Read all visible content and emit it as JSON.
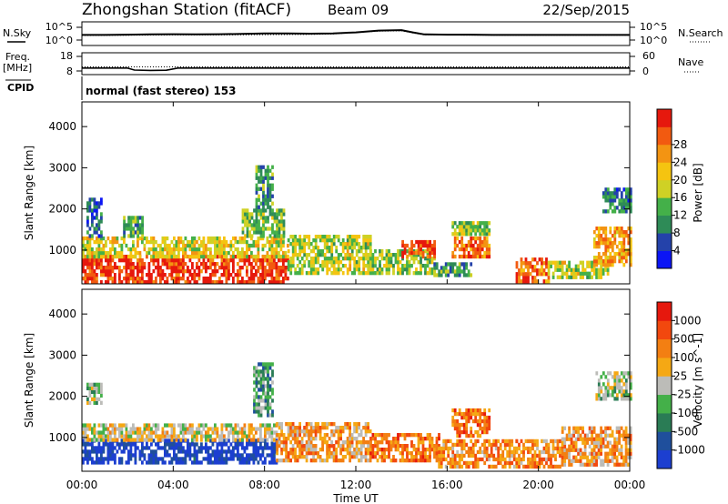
{
  "header": {
    "title": "Zhongshan Station (fitACF)",
    "beam": "Beam 09",
    "date": "22/Sep/2015"
  },
  "labels": {
    "nsky": "N.Sky",
    "nsearch": "N.Search",
    "freq": "Freq.",
    "mhz": "[MHz]",
    "nave": "Nave",
    "cpid": "CPID",
    "cpid_value": "normal (fast stereo) 153",
    "tick_1e5": "10^5",
    "tick_1e0": "10^0",
    "tick_18": "18",
    "tick_8": "8",
    "tick_60": "60",
    "tick_0": "0"
  },
  "chart_data": [
    {
      "type": "line",
      "panel": "noise",
      "series": [
        {
          "name": "N.Sky",
          "x": [
            0,
            1,
            2,
            3,
            4,
            5,
            6,
            7,
            8,
            9,
            10,
            11,
            12,
            13,
            14,
            14.5,
            15,
            16,
            17,
            18,
            19,
            20,
            21,
            22,
            23,
            24
          ],
          "values": [
            2.0,
            2.0,
            2.1,
            2.2,
            2.3,
            2.2,
            2.3,
            2.4,
            2.6,
            2.6,
            2.5,
            2.6,
            3.0,
            3.7,
            3.9,
            3.0,
            2.2,
            2.1,
            2.1,
            2.0,
            2.0,
            2.0,
            2.0,
            2.0,
            2.0,
            2.0
          ]
        },
        {
          "name": "N.Search",
          "x": [
            0,
            2,
            4,
            6,
            8,
            10,
            11,
            12,
            13,
            14,
            14.5,
            15,
            18,
            21,
            24
          ],
          "values": [
            1.8,
            1.9,
            2.0,
            2.0,
            2.1,
            2.2,
            2.4,
            3.0,
            3.5,
            3.6,
            2.8,
            2.0,
            1.9,
            1.9,
            1.9
          ]
        }
      ]
    },
    {
      "type": "line",
      "panel": "frequency",
      "series": [
        {
          "name": "Freq.",
          "x": [
            0,
            2,
            2.3,
            3,
            3.7,
            4.2,
            6,
            12,
            18,
            24
          ],
          "values": [
            10.0,
            10.0,
            8.6,
            8.4,
            8.5,
            10.0,
            10.0,
            10.0,
            10.0,
            10.0
          ]
        },
        {
          "name": "Nave",
          "x": [
            0,
            6,
            12,
            18,
            24
          ],
          "values": [
            17,
            17,
            17,
            17,
            17
          ]
        }
      ]
    },
    {
      "type": "heatmap",
      "panel": "power",
      "ylabel": "Slant Range [km]",
      "ylim": [
        180,
        4600
      ],
      "xlim": [
        0,
        24
      ],
      "colorbar_label": "Power [dB]",
      "colorbar_ticks": [
        "4",
        "8",
        "12",
        "16",
        "20",
        "24",
        "28"
      ],
      "colorbar_colors": [
        "#0b15f5",
        "#2442aa",
        "#2e8b57",
        "#44b049",
        "#cfd125",
        "#f5c410",
        "#f39412",
        "#f25a10",
        "#e6180d"
      ],
      "yticks": [
        "1000",
        "2000",
        "3000",
        "4000"
      ],
      "regions": [
        {
          "t0": 0.0,
          "t1": 9.0,
          "r0": 180,
          "r1": 800,
          "level": 0.9
        },
        {
          "t0": 0.0,
          "t1": 9.0,
          "r0": 800,
          "r1": 1250,
          "level": 0.55
        },
        {
          "t0": 0.2,
          "t1": 0.8,
          "r0": 1300,
          "r1": 2200,
          "level": 0.2
        },
        {
          "t0": 1.8,
          "t1": 2.6,
          "r0": 1300,
          "r1": 1800,
          "level": 0.35
        },
        {
          "t0": 7.0,
          "t1": 8.8,
          "r0": 1300,
          "r1": 2000,
          "level": 0.4
        },
        {
          "t0": 7.6,
          "t1": 8.3,
          "r0": 2000,
          "r1": 3000,
          "level": 0.3
        },
        {
          "t0": 9.0,
          "t1": 12.6,
          "r0": 400,
          "r1": 1300,
          "level": 0.5
        },
        {
          "t0": 12.6,
          "t1": 15.4,
          "r0": 400,
          "r1": 1000,
          "level": 0.45
        },
        {
          "t0": 14.0,
          "t1": 15.4,
          "r0": 800,
          "r1": 1200,
          "level": 0.85
        },
        {
          "t0": 15.4,
          "t1": 17.0,
          "r0": 350,
          "r1": 700,
          "level": 0.35
        },
        {
          "t0": 16.2,
          "t1": 17.8,
          "r0": 800,
          "r1": 1300,
          "level": 0.8
        },
        {
          "t0": 16.2,
          "t1": 17.8,
          "r0": 1350,
          "r1": 1700,
          "level": 0.45
        },
        {
          "t0": 19.0,
          "t1": 20.4,
          "r0": 200,
          "r1": 750,
          "level": 0.8
        },
        {
          "t0": 20.4,
          "t1": 23.0,
          "r0": 300,
          "r1": 700,
          "level": 0.5
        },
        {
          "t0": 22.4,
          "t1": 24.0,
          "r0": 600,
          "r1": 1500,
          "level": 0.7
        },
        {
          "t0": 22.8,
          "t1": 24.0,
          "r0": 1900,
          "r1": 2500,
          "level": 0.25
        }
      ]
    },
    {
      "type": "heatmap",
      "panel": "velocity",
      "ylabel": "Slant Range [km]",
      "xlabel": "Time UT",
      "ylim": [
        180,
        4600
      ],
      "xlim": [
        0,
        24
      ],
      "colorbar_label": "Velocity [m s^-1]",
      "colorbar_ticks": [
        "1000",
        "500",
        "100",
        "25",
        "-25",
        "-100",
        "-500",
        "-1000"
      ],
      "colorbar_colors": [
        "#1c3fd0",
        "#1f4f9c",
        "#2a7c55",
        "#44b049",
        "#bcbcb8",
        "#f5a814",
        "#f37f12",
        "#f2480e",
        "#e6180d"
      ],
      "yticks": [
        "1000",
        "2000",
        "3000",
        "4000"
      ],
      "xticks": [
        "00:00",
        "04:00",
        "08:00",
        "12:00",
        "16:00",
        "20:00",
        "00:00"
      ],
      "regions": [
        {
          "t0": 0.0,
          "t1": 8.5,
          "r0": 350,
          "r1": 900,
          "level": 0.05
        },
        {
          "t0": 0.0,
          "t1": 8.5,
          "r0": 900,
          "r1": 1300,
          "level": 0.55
        },
        {
          "t0": 0.2,
          "t1": 0.8,
          "r0": 1800,
          "r1": 2300,
          "level": 0.45
        },
        {
          "t0": 7.5,
          "t1": 8.3,
          "r0": 1500,
          "r1": 2800,
          "level": 0.35
        },
        {
          "t0": 8.5,
          "t1": 12.6,
          "r0": 400,
          "r1": 1300,
          "level": 0.65
        },
        {
          "t0": 12.6,
          "t1": 15.6,
          "r0": 400,
          "r1": 1100,
          "level": 0.75
        },
        {
          "t0": 15.6,
          "t1": 19.0,
          "r0": 250,
          "r1": 900,
          "level": 0.7
        },
        {
          "t0": 16.2,
          "t1": 17.8,
          "r0": 1000,
          "r1": 1700,
          "level": 0.75
        },
        {
          "t0": 19.0,
          "t1": 21.0,
          "r0": 250,
          "r1": 900,
          "level": 0.7
        },
        {
          "t0": 21.0,
          "t1": 24.0,
          "r0": 300,
          "r1": 1200,
          "level": 0.65
        },
        {
          "t0": 22.5,
          "t1": 24.0,
          "r0": 1900,
          "r1": 2600,
          "level": 0.45
        }
      ]
    }
  ]
}
